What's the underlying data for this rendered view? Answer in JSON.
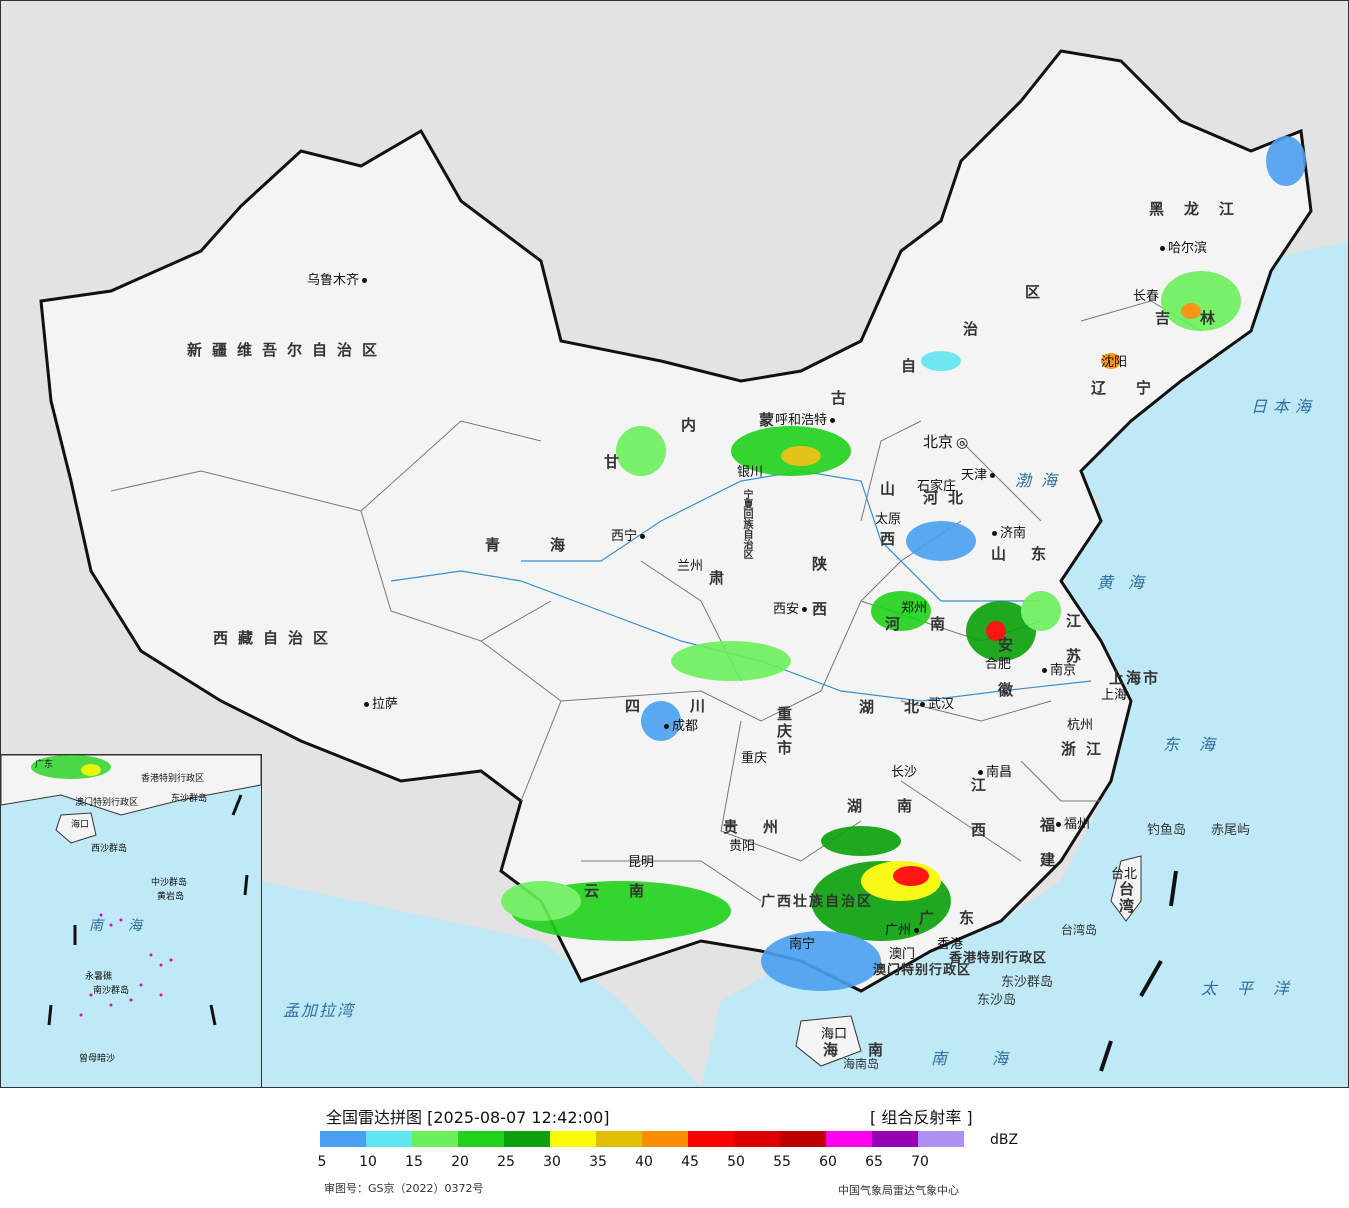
{
  "map": {
    "regions": {
      "xinjiang": "新疆维吾尔自治区",
      "xizang": "西藏自治区",
      "qinghai": "青海",
      "gansu": "甘",
      "sichuan": "四川",
      "yunnan": "云南",
      "guizhou": "贵州",
      "guangxi": "广西壮族自治区",
      "guangdong": "广东",
      "hunan": "湖南",
      "hubei": "湖北",
      "henan": "河南",
      "shaanxi": "陕西",
      "shanxi": "山西",
      "hebei": "河北",
      "shandong": "山东",
      "jiangsu": "江苏",
      "anhui": "安徽",
      "zhejiang": "浙江",
      "jiangxi": "江西",
      "fujian": "福建",
      "taiwan": "台湾",
      "hainan": "海南",
      "chongqing": "重庆市",
      "shanghai": "上海市",
      "liaoning": "辽宁",
      "jilin": "吉林",
      "heilongjiang": "黑龙江",
      "neimenggu_1": "内",
      "neimenggu_2": "蒙",
      "neimenggu_3": "古",
      "neimenggu_4": "自",
      "neimenggu_5": "治",
      "neimenggu_6": "区",
      "ningxia": "宁夏回族自治区",
      "hongkong_sar": "香港特别行政区",
      "macao_sar": "澳门特别行政区",
      "gansu_2": "肃"
    },
    "cities": {
      "urumqi": "乌鲁木齐",
      "lhasa": "拉萨",
      "xining": "西宁",
      "lanzhou": "兰州",
      "yinchuan": "银川",
      "huhehaote": "呼和浩特",
      "beijing": "北京",
      "tianjin": "天津",
      "shijiazhuang": "石家庄",
      "taiyuan": "太原",
      "jinan": "济南",
      "zhengzhou": "郑州",
      "xian": "西安",
      "chengdu": "成都",
      "chongqing": "重庆",
      "wuhan": "武汉",
      "hefei": "合肥",
      "nanjing": "南京",
      "shanghai": "上海",
      "hangzhou": "杭州",
      "nanchang": "南昌",
      "changsha": "长沙",
      "guiyang": "贵阳",
      "kunming": "昆明",
      "nanning": "南宁",
      "guangzhou": "广州",
      "macau": "澳门",
      "hongkong": "香港",
      "fuzhou": "福州",
      "taibei": "台北",
      "haikou": "海口",
      "harbin": "哈尔滨",
      "changchun": "长春",
      "shenyang": "沈阳"
    },
    "islands": {
      "diaoyu": "钓鱼岛",
      "chiwei": "赤尾屿",
      "dongsha_qd": "东沙群岛",
      "dongsha": "东沙岛",
      "hainan_island": "海南岛",
      "taiwan_island": "台湾岛"
    },
    "seas": {
      "bohai": "渤海",
      "huanghai": "黄海",
      "donghai": "东海",
      "nanhai": "南海",
      "japan_sea": "日本海",
      "pacific": "太平洋",
      "bengal": "孟加拉湾"
    }
  },
  "inset": {
    "nanhai_label": "南海",
    "labels": [
      "广东",
      "香港特别行政区",
      "澳门特别行政区",
      "海口",
      "西沙群岛",
      "中沙群岛",
      "南沙群岛",
      "东沙群岛",
      "黄岩岛",
      "曾母暗沙",
      "永暑礁"
    ]
  },
  "legend": {
    "title": "全国雷达拼图 [2025-08-07 12:42:00]",
    "product": "[ 组合反射率 ]",
    "unit": "dBZ",
    "colors": [
      "#4aa0f0",
      "#5fe6f0",
      "#6cf05a",
      "#21d21b",
      "#0aa00a",
      "#fafa00",
      "#e1be00",
      "#fa8c00",
      "#ff0000",
      "#dc0000",
      "#be0000",
      "#ff00f0",
      "#9600b4",
      "#ad90f0"
    ],
    "ticks": [
      "5",
      "10",
      "15",
      "20",
      "25",
      "30",
      "35",
      "40",
      "45",
      "50",
      "55",
      "60",
      "65",
      "70"
    ],
    "review_no": "审图号：GS京（2022）0372号",
    "source": "中国气象局雷达气象中心"
  }
}
